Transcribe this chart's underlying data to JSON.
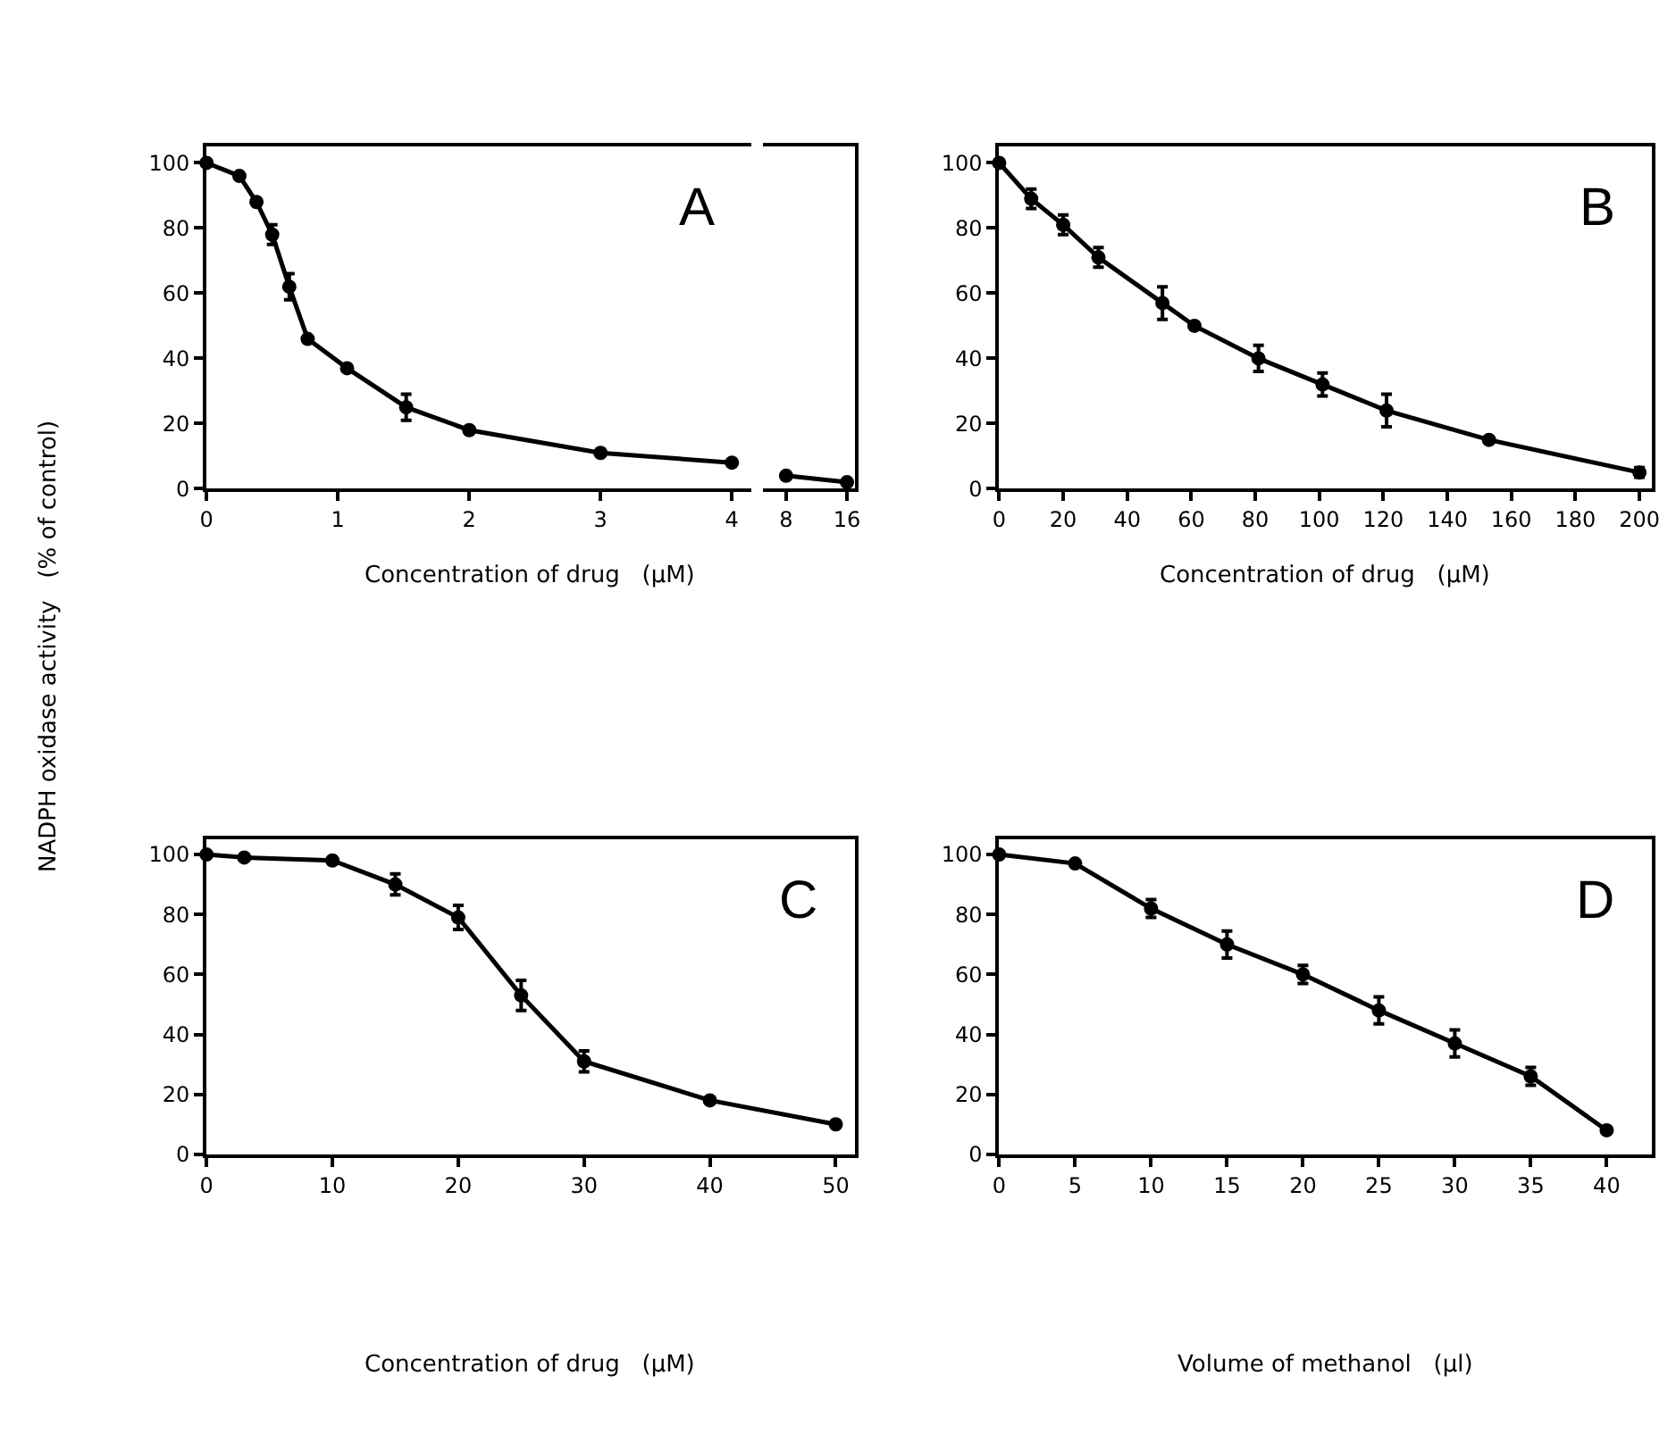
{
  "chart_data": [
    {
      "type": "line",
      "title": "A",
      "ylabel": "NADPH oxidase activity   (% of control)",
      "xlabel": "Concentration of drug   (μM)",
      "xlim": [
        0,
        4.15
      ],
      "xticks": [
        0,
        1,
        2,
        3,
        4
      ],
      "ylim": [
        0,
        105
      ],
      "yticks": [
        0,
        20,
        40,
        60,
        80,
        100
      ],
      "marker": "circle",
      "line_style": "solid",
      "series": [
        {
          "color": "#000000",
          "x": [
            0,
            0.25,
            0.38,
            0.5,
            0.63,
            0.77,
            1.07,
            1.52,
            2,
            3,
            4
          ],
          "values": [
            100,
            96,
            88,
            78,
            62,
            46,
            37,
            25,
            18,
            11,
            8
          ],
          "errors": [
            null,
            null,
            null,
            3,
            4,
            null,
            null,
            4,
            null,
            null,
            null
          ]
        }
      ]
    },
    {
      "type": "line",
      "xlim": [
        5,
        17
      ],
      "xticks": [
        8,
        16
      ],
      "ylim": [
        0,
        105
      ],
      "yticks": [
        0,
        20,
        40,
        60,
        80,
        100
      ],
      "tick_labels": "x",
      "marker": "circle",
      "line_style": "solid",
      "series": [
        {
          "color": "#000000",
          "x": [
            8,
            16
          ],
          "values": [
            4,
            2
          ]
        }
      ]
    },
    {
      "type": "line",
      "title": "B",
      "xlabel": "Concentration of drug   (μM)",
      "xlim": [
        0,
        204
      ],
      "xticks": [
        0,
        20,
        40,
        60,
        80,
        100,
        120,
        140,
        160,
        180,
        200
      ],
      "ylim": [
        0,
        105
      ],
      "yticks": [
        0,
        20,
        40,
        60,
        80,
        100
      ],
      "marker": "circle",
      "line_style": "solid",
      "series": [
        {
          "color": "#000000",
          "x": [
            0,
            10,
            20,
            31,
            51,
            61,
            81,
            101,
            121,
            153,
            200
          ],
          "values": [
            100,
            89,
            81,
            71,
            57,
            50,
            40,
            32,
            24,
            15,
            5
          ],
          "errors": [
            null,
            3,
            3,
            3,
            5,
            null,
            4,
            3.5,
            5,
            null,
            1.5
          ]
        }
      ]
    },
    {
      "type": "line",
      "title": "C",
      "xlabel": "Concentration of drug   (μM)",
      "xlim": [
        0,
        51.5
      ],
      "xticks": [
        0,
        10,
        20,
        30,
        40,
        50
      ],
      "ylim": [
        0,
        105
      ],
      "yticks": [
        0,
        20,
        40,
        60,
        80,
        100
      ],
      "marker": "circle",
      "line_style": "solid",
      "series": [
        {
          "color": "#000000",
          "x": [
            0,
            3,
            10,
            15,
            20,
            25,
            30,
            40,
            50
          ],
          "values": [
            100,
            99,
            98,
            90,
            79,
            53,
            31,
            18,
            10
          ],
          "errors": [
            null,
            null,
            null,
            3.5,
            4,
            5,
            3.5,
            null,
            null
          ]
        }
      ]
    },
    {
      "type": "line",
      "title": "D",
      "xlabel": "Volume of methanol   (μl)",
      "xlim": [
        0,
        43
      ],
      "xticks": [
        0,
        5,
        10,
        15,
        20,
        25,
        30,
        35,
        40
      ],
      "ylim": [
        0,
        105
      ],
      "yticks": [
        0,
        20,
        40,
        60,
        80,
        100
      ],
      "marker": "circle",
      "line_style": "solid",
      "series": [
        {
          "color": "#000000",
          "x": [
            0,
            5,
            10,
            15,
            20,
            25,
            30,
            35,
            40
          ],
          "values": [
            100,
            97,
            82,
            70,
            60,
            48,
            37,
            26,
            8
          ],
          "errors": [
            null,
            null,
            3,
            4.5,
            3,
            4.5,
            4.5,
            3,
            null
          ]
        }
      ]
    }
  ]
}
